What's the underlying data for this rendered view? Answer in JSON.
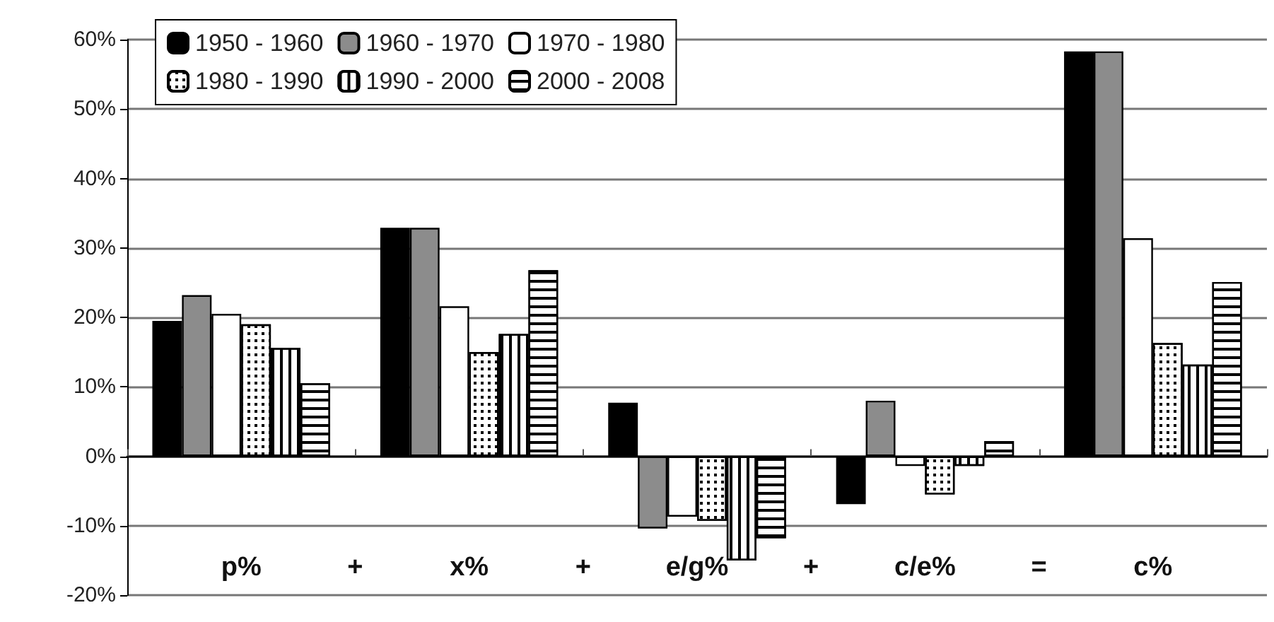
{
  "chart_data": {
    "type": "bar",
    "categories": [
      "p%",
      "x%",
      "e/g%",
      "c/e%",
      "c%"
    ],
    "series": [
      {
        "name": "1950 - 1960",
        "color": "#000000",
        "values": [
          19.5,
          32.9,
          7.7,
          -6.9,
          58.3
        ]
      },
      {
        "name": "1960 - 1970",
        "color": "#8c8c8c",
        "values": [
          23.2,
          32.9,
          -10.4,
          8.0,
          58.3
        ]
      },
      {
        "name": "1970 - 1980",
        "color": "#ffffff",
        "values": [
          20.5,
          21.6,
          -8.7,
          -1.4,
          31.4
        ]
      },
      {
        "name": "1980 - 1990",
        "color": "#ffffff",
        "values": [
          19.0,
          15.0,
          -9.3,
          -5.5,
          16.3
        ]
      },
      {
        "name": "1990 - 2000",
        "color": "#ffffff",
        "values": [
          15.6,
          17.6,
          -15.0,
          -1.4,
          13.2
        ]
      },
      {
        "name": "2000 - 2008",
        "color": "#ffffff",
        "values": [
          10.5,
          26.8,
          -11.8,
          2.2,
          25.1
        ]
      }
    ],
    "ylim": [
      -20,
      60
    ],
    "yticks": [
      {
        "value": -20,
        "label": "-20%"
      },
      {
        "value": -10,
        "label": "-10%"
      },
      {
        "value": 0,
        "label": "0%"
      },
      {
        "value": 10,
        "label": "10%"
      },
      {
        "value": 20,
        "label": "20%"
      },
      {
        "value": 30,
        "label": "30%"
      },
      {
        "value": 40,
        "label": "40%"
      },
      {
        "value": 50,
        "label": "50%"
      },
      {
        "value": 60,
        "label": "60%"
      }
    ],
    "annotations": [
      "+",
      "+",
      "+",
      "="
    ],
    "grid": "y",
    "legend": "top left"
  }
}
